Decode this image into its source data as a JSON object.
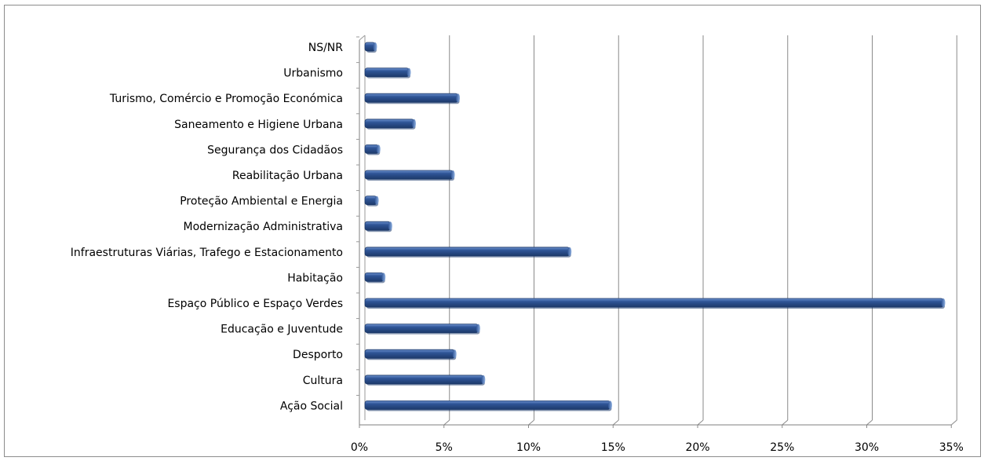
{
  "chart_data": {
    "type": "bar",
    "orientation": "horizontal",
    "style": "3d-clustered-bar",
    "categories": [
      "Ação Social",
      "Cultura",
      "Desporto",
      "Educação e Juventude",
      "Espaço Público e Espaço Verdes",
      "Habitação",
      "Infraestruturas Viárias,  Trafego e Estacionamento",
      "Modernização Administrativa",
      "Proteção Ambiental e Energia",
      "Reabilitação Urbana",
      "Segurança dos Cidadãos",
      "Saneamento e Higiene Urbana",
      "Turismo, Comércio e Promoção Económica",
      "Urbanismo",
      "NS/NR"
    ],
    "values": [
      14.5,
      7.0,
      5.3,
      6.7,
      34.2,
      1.1,
      12.1,
      1.5,
      0.7,
      5.2,
      0.8,
      2.9,
      5.5,
      2.6,
      0.6
    ],
    "x_ticks": [
      "0%",
      "5%",
      "10%",
      "15%",
      "20%",
      "25%",
      "30%",
      "35%"
    ],
    "xlim": [
      0,
      35
    ],
    "grid": "vertical",
    "legend": "none",
    "colors": {
      "bar": "#2f5597",
      "bar_highlight": "#6f93cf",
      "bar_shadow": "#1d3a6b",
      "gridline": "#8a8a8a",
      "frame": "#8c8c8c"
    }
  }
}
